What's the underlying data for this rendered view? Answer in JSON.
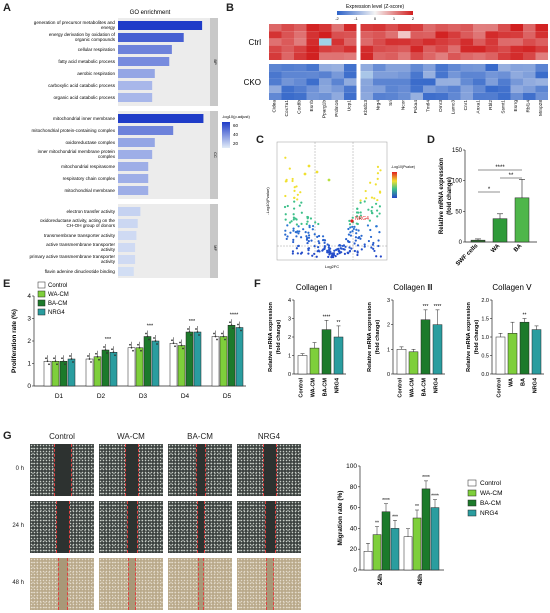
{
  "panels": {
    "a": "A",
    "b": "B",
    "c": "C",
    "d": "D",
    "e": "E",
    "f": "F",
    "g": "G"
  },
  "chart_data": [
    {
      "id": "A",
      "type": "bar",
      "title": "GO enrichment",
      "xlabel": "Gene Number",
      "xticks": [
        "0",
        "50",
        "100"
      ],
      "legend_title": "-log10(p.adjust)",
      "legend_ticks": [
        "60",
        "40",
        "20"
      ],
      "groups": [
        {
          "name": "BP",
          "terms": [
            "generation of precursor metabolites and energy",
            "energy derivation by oxidation of organic compounds",
            "cellular respiration",
            "fatty acid metabolic process",
            "aerobic respiration",
            "carboxylic acid catabolic process",
            "organic acid catabolic process"
          ],
          "values": [
            128,
            100,
            82,
            78,
            56,
            52,
            52
          ],
          "shade": [
            1.0,
            0.8,
            0.6,
            0.55,
            0.4,
            0.3,
            0.3
          ]
        },
        {
          "name": "CC",
          "terms": [
            "mitochondrial inner membrane",
            "mitochondrial protein-containing complex",
            "oxidoreductase complex",
            "inner mitochondrial membrane protein complex",
            "mitochondrial respirasome",
            "respiratory chain complex",
            "mitochondrial membrane"
          ],
          "values": [
            130,
            84,
            56,
            52,
            46,
            46,
            46
          ],
          "shade": [
            1.0,
            0.6,
            0.4,
            0.35,
            0.35,
            0.35,
            0.35
          ]
        },
        {
          "name": "MF",
          "terms": [
            "electron transfer activity",
            "oxidoreductase activity, acting on the CH-OH group of donors",
            "transmembrane transporter activity",
            "active transmembrane transporter activity",
            "primary active transmembrane transporter activity",
            "flavin adenine dinucleotide binding",
            "oxidoreductase activity, acting on CH-OH group of donors"
          ],
          "values": [
            34,
            30,
            28,
            26,
            26,
            24,
            24
          ],
          "shade": [
            0.15,
            0.12,
            0.1,
            0.1,
            0.1,
            0.08,
            0.08
          ]
        }
      ]
    },
    {
      "id": "B",
      "type": "heatmap",
      "title": "Expression level (Z-score)",
      "scale_ticks": [
        "-2",
        "-1",
        "0",
        "1",
        "2"
      ],
      "rows": [
        "Ctrl",
        "CKO"
      ],
      "genes": [
        "Cidea",
        "Cox7a1",
        "Cox8b",
        "Esrrb",
        "Pparg1b",
        "Prdm16",
        "Ucp1",
        "Kbtd13",
        "Nrg4",
        "Sri",
        "Ncor",
        "Pcka4",
        "Tmtl4",
        "Omr3",
        "Lamc3",
        "Cnr1",
        "Anxa1",
        "Rbl2",
        "Ssmt1",
        "Esrrg",
        "Rbl14",
        "Mmp28"
      ]
    },
    {
      "id": "C",
      "type": "scatter",
      "xlabel": "Log2FC",
      "ylabel": "-Log10(Pvalue)",
      "legend_title": "-Log10(Pvalue)",
      "annotation": "NRG4"
    },
    {
      "id": "D",
      "type": "bar",
      "ylabel": "Relative mRNA expression\n(fold change)",
      "categories": [
        "SWF cells",
        "WA",
        "BA"
      ],
      "values": [
        3,
        38,
        72
      ],
      "errors": [
        2,
        8,
        30
      ],
      "ylim": [
        0,
        150
      ],
      "yticks": [
        "0",
        "50",
        "100",
        "150"
      ],
      "sig": [
        "*",
        "**",
        "****"
      ]
    },
    {
      "id": "E",
      "type": "bar",
      "ylabel": "Proliferation rate (%)",
      "categories": [
        "D1",
        "D2",
        "D3",
        "D4",
        "D5"
      ],
      "ylim": [
        0,
        4
      ],
      "yticks": [
        "0",
        "1",
        "2",
        "3",
        "4"
      ],
      "series": [
        {
          "name": "Control",
          "values": [
            1.1,
            1.2,
            1.7,
            1.9,
            2.2
          ]
        },
        {
          "name": "WA-CM",
          "values": [
            1.1,
            1.3,
            1.7,
            1.8,
            2.2
          ]
        },
        {
          "name": "BA-CM",
          "values": [
            1.1,
            1.6,
            2.2,
            2.4,
            2.7
          ]
        },
        {
          "name": "NRG4",
          "values": [
            1.2,
            1.5,
            2.0,
            2.4,
            2.6
          ]
        }
      ],
      "sig": [
        "",
        "***",
        "***",
        "***",
        "****"
      ]
    },
    {
      "id": "F1",
      "type": "bar",
      "title": "Collagen Ⅰ",
      "ylabel": "Relative mRNA expression\n(fold change)",
      "categories": [
        "Control",
        "WA-CM",
        "BA-CM",
        "NRG4"
      ],
      "values": [
        1.0,
        1.4,
        2.4,
        2.0
      ],
      "errors": [
        0.1,
        0.3,
        0.5,
        0.6
      ],
      "ylim": [
        0,
        4
      ],
      "yticks": [
        "0",
        "1",
        "2",
        "3",
        "4"
      ],
      "sig": [
        "",
        "",
        "****",
        "**"
      ]
    },
    {
      "id": "F2",
      "type": "bar",
      "title": "Collagen Ⅲ",
      "ylabel": "Relative mRNA expression\n(fold change)",
      "categories": [
        "Control",
        "WA-CM",
        "BA-CM",
        "NRG4"
      ],
      "values": [
        1.0,
        0.9,
        2.2,
        2.0
      ],
      "errors": [
        0.1,
        0.1,
        0.4,
        0.6
      ],
      "ylim": [
        0,
        3
      ],
      "yticks": [
        "0",
        "1",
        "2",
        "3"
      ],
      "sig": [
        "",
        "",
        "***",
        "****"
      ]
    },
    {
      "id": "F3",
      "type": "bar",
      "title": "Collagen Ⅴ",
      "ylabel": "Relative mRNA expression\n(fold change)",
      "categories": [
        "Control",
        "WA",
        "BA",
        "NRG4"
      ],
      "values": [
        1.0,
        1.1,
        1.4,
        1.2
      ],
      "errors": [
        0.1,
        0.3,
        0.1,
        0.1
      ],
      "ylim": [
        0,
        2
      ],
      "yticks": [
        "0.0",
        "0.5",
        "1.0",
        "1.5",
        "2.0"
      ],
      "sig": [
        "",
        "",
        "**",
        ""
      ]
    },
    {
      "id": "G",
      "type": "bar",
      "ylabel": "Migration rate (%)",
      "categories": [
        "24h",
        "48h"
      ],
      "ylim": [
        0,
        100
      ],
      "yticks": [
        "0",
        "20",
        "40",
        "60",
        "80",
        "100"
      ],
      "series": [
        {
          "name": "Control",
          "values": [
            18,
            32
          ]
        },
        {
          "name": "WA-CM",
          "values": [
            34,
            50
          ]
        },
        {
          "name": "BA-CM",
          "values": [
            56,
            78
          ]
        },
        {
          "name": "NRG4",
          "values": [
            40,
            60
          ]
        }
      ],
      "sig": [
        [
          "",
          "**",
          "****",
          "***"
        ],
        [
          "",
          "**",
          "****",
          "****"
        ]
      ]
    }
  ],
  "colors": {
    "Control": "#ffffff",
    "WA-CM": "#7ecf3b",
    "BA-CM": "#1c7a2b",
    "NRG4": "#2a9d9f",
    "dark_blue": "#1f3cc8",
    "D_swf": "#2f6f2f",
    "D_wa": "#2f9a3a",
    "D_ba": "#4fb64a"
  },
  "micro": {
    "cols": [
      "Control",
      "WA-CM",
      "BA-CM",
      "NRG4"
    ],
    "rows": [
      "0 h",
      "24 h",
      "48 h"
    ]
  }
}
